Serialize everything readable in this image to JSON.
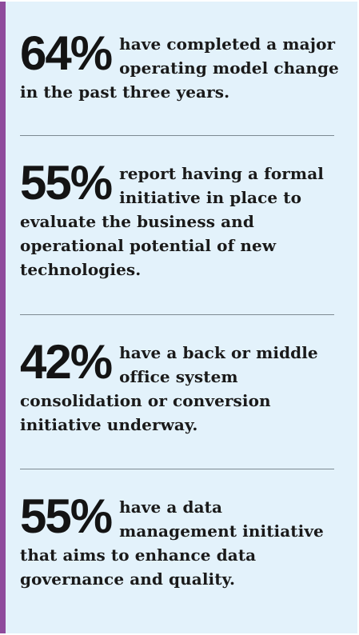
{
  "stats": [
    {
      "value": "64%",
      "text": "have completed a major operating model change in the past three years."
    },
    {
      "value": "55%",
      "text": "report having a formal initiative in place to evaluate the business and operational potential of new technologies."
    },
    {
      "value": "42%",
      "text": "have a back or middle office system consolidation or conversion initiative underway."
    },
    {
      "value": "55%",
      "text": "have a data management initiative that aims to enhance data governance and quality."
    }
  ],
  "colors": {
    "panel_background": "#e3f2fb",
    "accent_bar": "#8f4b9c",
    "divider": "#7d8a92",
    "text": "#161616"
  }
}
